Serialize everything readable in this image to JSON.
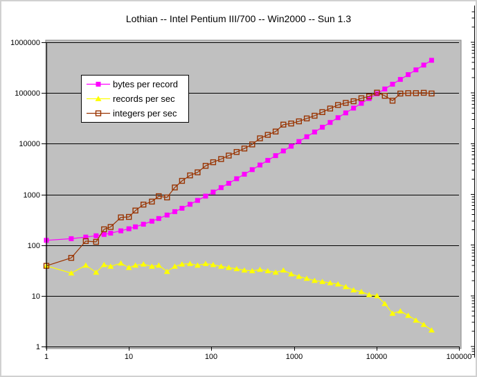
{
  "window": {
    "background": "#FFFFFF",
    "border_color": "#D0D0D0"
  },
  "chart_data": {
    "type": "line",
    "title": "Lothian -- Intel Pentium III/700 -- Win2000 -- Sun 1.3",
    "x_scale": "log",
    "y_scale": "log",
    "xlim": [
      1,
      100000
    ],
    "ylim": [
      1,
      1000000
    ],
    "x_ticks": [
      "1",
      "10",
      "100",
      "1000",
      "10000",
      "100000"
    ],
    "y_ticks": [
      "1",
      "10",
      "100",
      "1000",
      "10000",
      "100000",
      "1000000"
    ],
    "grid": "horizontal major gridlines, black on gray",
    "plot_background": "#C0C0C0",
    "plot_border": "#848484",
    "gridline_color": "#000000",
    "legend": {
      "position": "upper-left inside plot",
      "background": "#FFFFFF",
      "border": "#000000"
    },
    "x": [
      1,
      2,
      3,
      4,
      5,
      6,
      8,
      10,
      12,
      15,
      19,
      23,
      29,
      36,
      44,
      55,
      68,
      85,
      105,
      131,
      162,
      202,
      251,
      312,
      387,
      482,
      599,
      744,
      925,
      1150,
      1430,
      1777,
      2209,
      2746,
      3414,
      4244,
      5276,
      6558,
      8152,
      10134,
      12598,
      15660,
      19468,
      24202,
      30086,
      37402,
      46494
    ],
    "series": [
      {
        "name": "bytes per record",
        "color": "#FF00FF",
        "marker": "filled-square",
        "values": [
          124,
          134,
          144,
          153,
          162,
          172,
          191,
          210,
          229,
          258,
          296,
          334,
          391,
          457,
          533,
          638,
          761,
          923,
          1113,
          1360,
          1654,
          2034,
          2500,
          3079,
          3792,
          4694,
          5806,
          7183,
          8903,
          11040,
          13700,
          16997,
          21101,
          26202,
          32548,
          40433,
          50237,
          62416,
          77559,
          96388,
          119796,
          148885,
          185061,
          230034,
          285932,
          355434,
          441808
        ]
      },
      {
        "name": "records per sec",
        "color": "#FFFF00",
        "marker": "filled-triangle",
        "values": [
          39,
          28,
          40,
          29,
          41,
          38,
          44,
          36,
          40,
          42,
          38,
          40,
          30,
          38,
          42,
          43,
          40,
          43,
          41,
          38,
          36,
          34,
          32,
          31,
          33,
          31,
          29,
          32,
          27,
          24,
          22,
          20,
          19,
          18,
          17,
          15,
          13,
          12,
          10.5,
          10,
          7,
          4.5,
          5,
          4.1,
          3.3,
          2.7,
          2.1
        ]
      },
      {
        "name": "integers per sec",
        "color": "#993300",
        "marker": "open-square",
        "values": [
          39,
          56,
          120,
          116,
          205,
          228,
          352,
          360,
          480,
          630,
          722,
          920,
          870,
          1368,
          1848,
          2365,
          2720,
          3655,
          4305,
          4978,
          5832,
          6868,
          8032,
          9672,
          12771,
          14942,
          17371,
          23808,
          24975,
          27600,
          31460,
          35540,
          41971,
          49428,
          58038,
          63660,
          68588,
          78696,
          85596,
          101340,
          88186,
          70470,
          97340,
          99228,
          99284,
          100985,
          97637
        ]
      }
    ]
  }
}
